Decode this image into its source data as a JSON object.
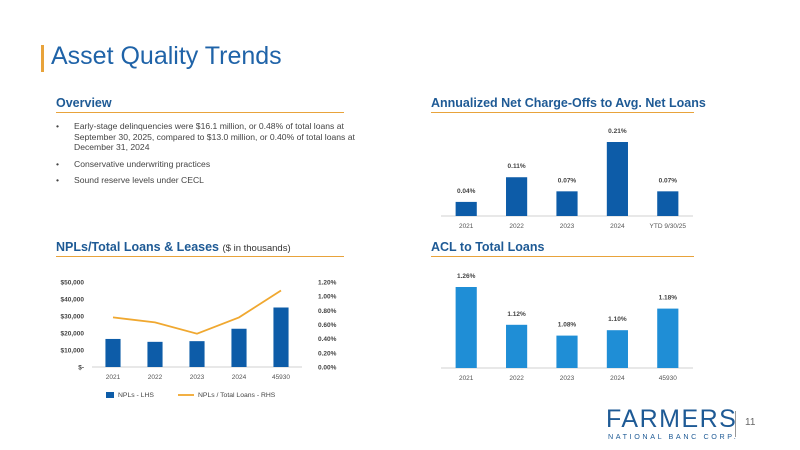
{
  "page": {
    "title": "Asset Quality Trends",
    "page_number": "11"
  },
  "overview": {
    "title": "Overview",
    "bullets": [
      "Early-stage delinquencies were $16.1 million, or 0.48% of total loans at September 30, 2025, compared to $13.0 million, or 0.40% of total loans at December 31, 2024",
      "Conservative underwriting practices",
      "Sound reserve levels under CECL"
    ]
  },
  "nco_section": {
    "title": "Annualized Net Charge-Offs to Avg. Net Loans"
  },
  "npl_section": {
    "title": "NPLs/Total Loans & Leases",
    "subtitle": "($ in thousands)"
  },
  "acl_section": {
    "title": "ACL to Total Loans"
  },
  "logo": {
    "word": "FARMERS",
    "subtitle": "NATIONAL BANC CORP."
  },
  "colors": {
    "accent": "#e8a33b",
    "dark_blue": "#1e5a95",
    "bar_blue": "#0d5ca8",
    "light_blue": "#1f8ed6",
    "line_orange": "#f0a830"
  },
  "chart_data": [
    {
      "id": "nco",
      "type": "bar",
      "title": "Annualized Net Charge-Offs to Avg. Net Loans",
      "categories": [
        "2021",
        "2022",
        "2023",
        "2024",
        "YTD 9/30/25"
      ],
      "values": [
        0.04,
        0.11,
        0.07,
        0.21,
        0.07
      ],
      "data_labels": [
        "0.04%",
        "0.11%",
        "0.07%",
        "0.21%",
        "0.07%"
      ],
      "ylim": [
        0,
        0.21
      ],
      "color": "#0d5ca8"
    },
    {
      "id": "acl",
      "type": "bar",
      "title": "ACL to Total Loans",
      "categories": [
        "2021",
        "2022",
        "2023",
        "2024",
        "45930"
      ],
      "values": [
        1.26,
        1.12,
        1.08,
        1.1,
        1.18
      ],
      "data_labels": [
        "1.26%",
        "1.12%",
        "1.08%",
        "1.10%",
        "1.18%"
      ],
      "ylim": [
        0.96,
        1.26
      ],
      "color": "#1f8ed6"
    },
    {
      "id": "npl",
      "type": "bar",
      "title": "NPLs/Total Loans & Leases",
      "categories": [
        "2021",
        "2022",
        "2023",
        "2024",
        "45930"
      ],
      "series": [
        {
          "name": "NPLs - LHS",
          "type": "bar",
          "axis": "left",
          "values": [
            16500,
            14800,
            15200,
            22500,
            35000
          ]
        },
        {
          "name": "NPLs / Total Loans - RHS",
          "type": "line",
          "axis": "right",
          "values": [
            0.7,
            0.63,
            0.47,
            0.7,
            1.08
          ]
        }
      ],
      "y_left": {
        "ylim": [
          0,
          50000
        ],
        "ticks": [
          "$-",
          "$10,000",
          "$20,000",
          "$30,000",
          "$40,000",
          "$50,000"
        ]
      },
      "y_right": {
        "ylim": [
          0,
          1.2
        ],
        "ticks": [
          "0.00%",
          "0.20%",
          "0.40%",
          "0.60%",
          "0.80%",
          "1.00%",
          "1.20%"
        ]
      },
      "legend": {
        "position": "bottom"
      }
    }
  ]
}
